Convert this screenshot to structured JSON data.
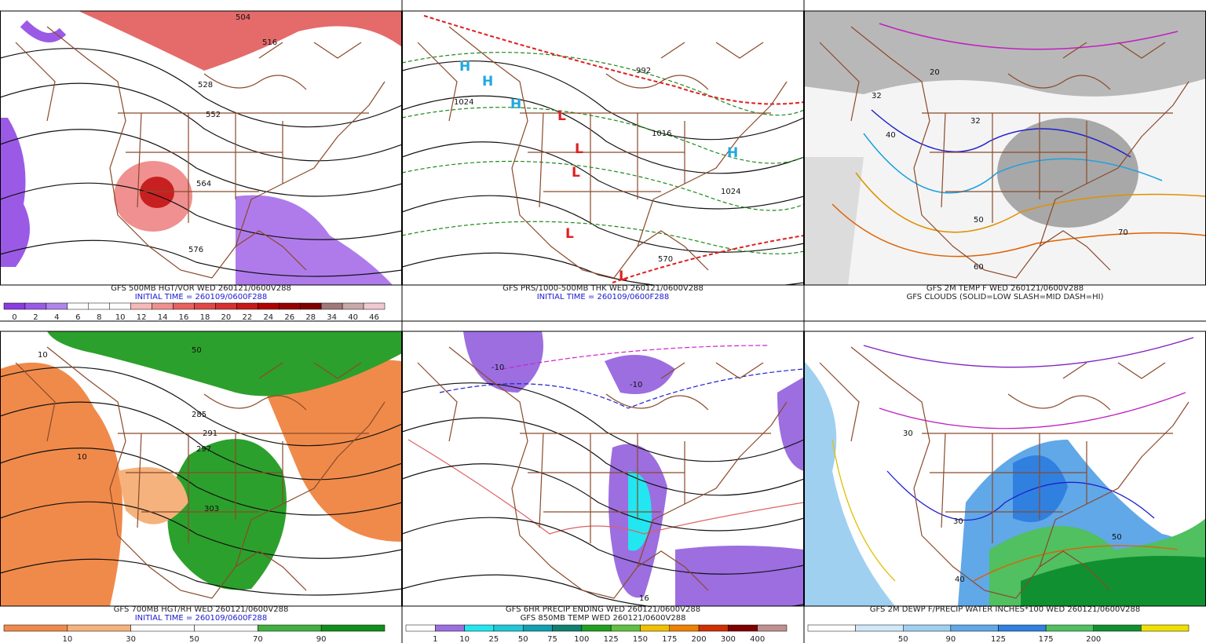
{
  "panels": [
    {
      "captions": [
        "GFS 500MB HGT/VOR WED 260121/0600V288",
        "INITIAL TIME = 260109/0600F288"
      ],
      "colorbar": {
        "labels": [
          "0",
          "2",
          "4",
          "6",
          "8",
          "10",
          "12",
          "14",
          "16",
          "18",
          "20",
          "22",
          "24",
          "26",
          "28",
          "34",
          "40",
          "46"
        ],
        "colors": [
          "#8a3ce0",
          "#9b5ae6",
          "#b085ea",
          "#ffffff",
          "#ffffff",
          "#ffffff",
          "#f6b8b8",
          "#ef8f8f",
          "#e86060",
          "#e04848",
          "#d83030",
          "#c81818",
          "#b00000",
          "#980000",
          "#800000",
          "#a07878",
          "#c8a8a8",
          "#f0c8d0"
        ]
      },
      "map_labels": [
        "504",
        "516",
        "528",
        "552",
        "564",
        "576"
      ]
    },
    {
      "captions": [
        "GFS PRS/1000-500MB THK WED 260121/0600V288",
        "INITIAL TIME = 260109/0600F288"
      ],
      "map_labels": [
        "H",
        "H",
        "H",
        "H",
        "L",
        "L",
        "L",
        "L",
        "L",
        "1024",
        "1016",
        "1024",
        "992",
        "570"
      ]
    },
    {
      "captions": [
        "GFS 2M TEMP F WED 260121/0600V288",
        "GFS CLOUDS (SOLID=LOW SLASH=MID DASH=HI)"
      ],
      "map_labels": [
        "32",
        "32",
        "20",
        "40",
        "50",
        "60",
        "70"
      ]
    },
    {
      "captions": [
        "GFS 700MB HGT/RH WED 260121/0600V288",
        "INITIAL TIME = 260109/0600F288"
      ],
      "colorbar": {
        "labels": [
          "10",
          "30",
          "50",
          "70",
          "90"
        ],
        "colors": [
          "#f08a4a",
          "#f5b27c",
          "#ffffff",
          "#ffffff",
          "#40b040",
          "#10901a"
        ]
      },
      "map_labels": [
        "10",
        "10",
        "50",
        "285",
        "291",
        "297",
        "303"
      ]
    },
    {
      "captions": [
        "GFS 6HR PRECIP ENDING WED 260121/0600V288",
        "GFS 850MB TEMP WED 260121/0600V288"
      ],
      "colorbar": {
        "labels": [
          "1",
          "10",
          "25",
          "50",
          "75",
          "100",
          "125",
          "150",
          "175",
          "200",
          "300",
          "400"
        ],
        "colors": [
          "#ffffff",
          "#9c6ee0",
          "#22e6f0",
          "#20c8d8",
          "#10a0b0",
          "#108070",
          "#20a020",
          "#60c040",
          "#f0c000",
          "#f08000",
          "#d03000",
          "#800000",
          "#c09090"
        ]
      },
      "map_labels": [
        "-10",
        "-10",
        "16"
      ]
    },
    {
      "captions": [
        "GFS 2M DEWP F/PRECIP WATER INCHES*100 WED 260121/0600V288"
      ],
      "colorbar": {
        "labels": [
          "50",
          "90",
          "125",
          "175",
          "200"
        ],
        "colors": [
          "#ffffff",
          "#d0e8f8",
          "#a0d0f0",
          "#60a8e8",
          "#3080e0",
          "#50c060",
          "#109030",
          "#f0e000"
        ]
      },
      "map_labels": [
        "30",
        "30",
        "40",
        "50"
      ]
    }
  ]
}
